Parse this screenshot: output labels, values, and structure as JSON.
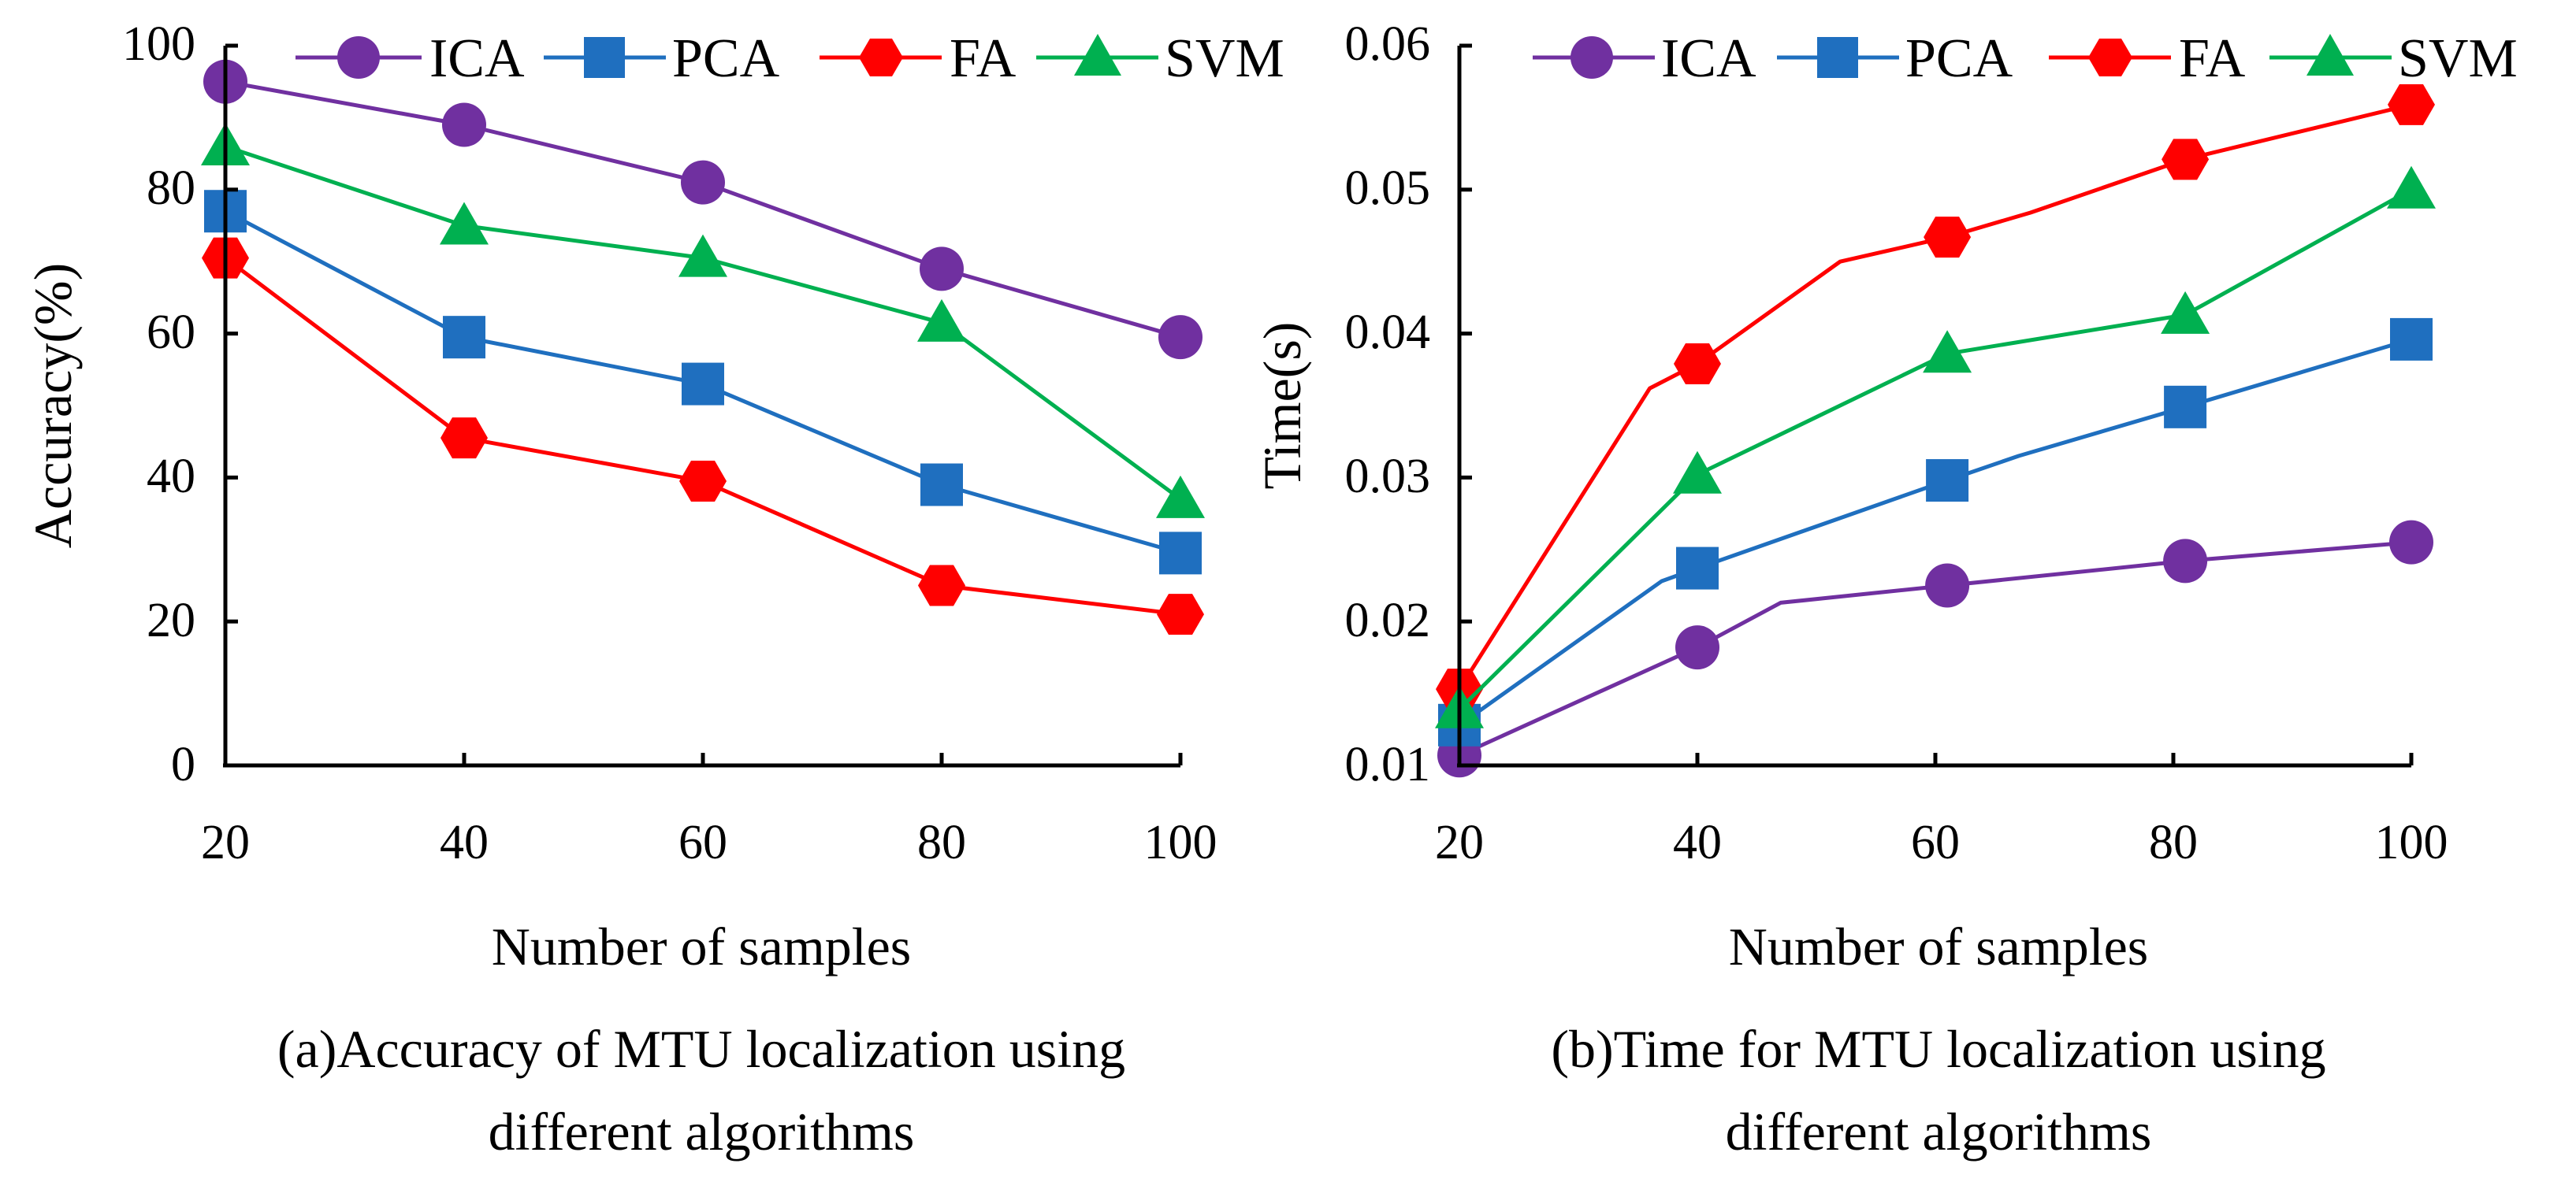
{
  "colors": {
    "ICA": "#7030A0",
    "PCA": "#1F6FBF",
    "FA": "#FF0000",
    "SVM": "#00B050",
    "axis": "#000000"
  },
  "chart_data": [
    {
      "type": "line",
      "id": "a",
      "title": "",
      "caption_lines": [
        "(a)Accuracy of MTU localization using",
        "different algorithms"
      ],
      "xlabel": "Number of samples",
      "ylabel": "Accuracy(%)",
      "xlim": [
        20,
        100
      ],
      "ylim": [
        0,
        100
      ],
      "xticks": [
        20,
        40,
        60,
        80,
        100
      ],
      "yticks": [
        0,
        20,
        40,
        60,
        80,
        100
      ],
      "ytick_labels": [
        "0",
        "20",
        "40",
        "60",
        "80",
        "100"
      ],
      "legend_position": "top",
      "series": [
        {
          "name": "ICA",
          "marker": "circle",
          "x": [
            20,
            40,
            60,
            80,
            100
          ],
          "values": [
            95,
            89,
            81,
            69,
            59.5
          ],
          "path_x": [
            20,
            40,
            60,
            80,
            100
          ],
          "path_y": [
            95,
            89,
            81,
            69,
            59.5
          ]
        },
        {
          "name": "PCA",
          "marker": "square",
          "x": [
            20,
            40,
            60,
            80,
            100
          ],
          "values": [
            77,
            59.5,
            53,
            39,
            29.5
          ],
          "path_x": [
            20,
            40,
            60,
            80,
            100
          ],
          "path_y": [
            77,
            59.5,
            53,
            39,
            29.5
          ]
        },
        {
          "name": "FA",
          "marker": "hexagon",
          "x": [
            20,
            40,
            60,
            80,
            100
          ],
          "values": [
            70.5,
            45.5,
            39.5,
            25,
            21
          ],
          "path_x": [
            20,
            40,
            60,
            80,
            100
          ],
          "path_y": [
            70.5,
            45.5,
            39.5,
            25,
            21
          ]
        },
        {
          "name": "SVM",
          "marker": "triangle",
          "x": [
            20,
            40,
            60,
            80,
            100
          ],
          "values": [
            86,
            75,
            70.5,
            61.5,
            37
          ],
          "path_x": [
            20,
            40,
            60,
            80,
            100
          ],
          "path_y": [
            86,
            75,
            70.5,
            61.5,
            37
          ]
        }
      ]
    },
    {
      "type": "line",
      "id": "b",
      "title": "",
      "caption_lines": [
        "(b)Time for MTU localization using",
        "different algorithms"
      ],
      "xlabel": "Number of samples",
      "ylabel": "Time(s)",
      "xlim": [
        20,
        100
      ],
      "ylim": [
        0.01,
        0.06
      ],
      "xticks": [
        20,
        40,
        60,
        80,
        100
      ],
      "yticks": [
        0.01,
        0.02,
        0.03,
        0.04,
        0.05,
        0.06
      ],
      "ytick_labels": [
        "0.01",
        "0.02",
        "0.03",
        "0.04",
        "0.05",
        "0.06"
      ],
      "legend_position": "top",
      "series": [
        {
          "name": "ICA",
          "marker": "circle",
          "x": [
            20,
            40,
            61,
            81,
            100
          ],
          "values": [
            0.0107,
            0.0182,
            0.0225,
            0.0242,
            0.0255
          ],
          "path_x": [
            20,
            40,
            47,
            61,
            81,
            100
          ],
          "path_y": [
            0.0107,
            0.0182,
            0.0213,
            0.0225,
            0.0242,
            0.0255
          ]
        },
        {
          "name": "PCA",
          "marker": "square",
          "x": [
            20,
            40,
            61,
            81,
            100
          ],
          "values": [
            0.0128,
            0.0237,
            0.0298,
            0.0349,
            0.0396
          ],
          "path_x": [
            20,
            37,
            40,
            61,
            67,
            81,
            100
          ],
          "path_y": [
            0.0128,
            0.0228,
            0.0237,
            0.0298,
            0.0315,
            0.0349,
            0.0396
          ]
        },
        {
          "name": "FA",
          "marker": "hexagon",
          "x": [
            20,
            40,
            61,
            81,
            100
          ],
          "values": [
            0.0153,
            0.0379,
            0.0467,
            0.0521,
            0.0559
          ],
          "path_x": [
            20,
            36,
            40,
            52,
            61,
            68,
            81,
            100
          ],
          "path_y": [
            0.0153,
            0.0362,
            0.0379,
            0.045,
            0.0467,
            0.0484,
            0.0521,
            0.0559
          ]
        },
        {
          "name": "SVM",
          "marker": "triangle",
          "x": [
            20,
            40,
            61,
            81,
            100
          ],
          "values": [
            0.0139,
            0.0302,
            0.0386,
            0.0413,
            0.05
          ],
          "path_x": [
            20,
            40,
            61,
            81,
            100
          ],
          "path_y": [
            0.0139,
            0.0302,
            0.0386,
            0.0413,
            0.05
          ]
        }
      ]
    }
  ]
}
